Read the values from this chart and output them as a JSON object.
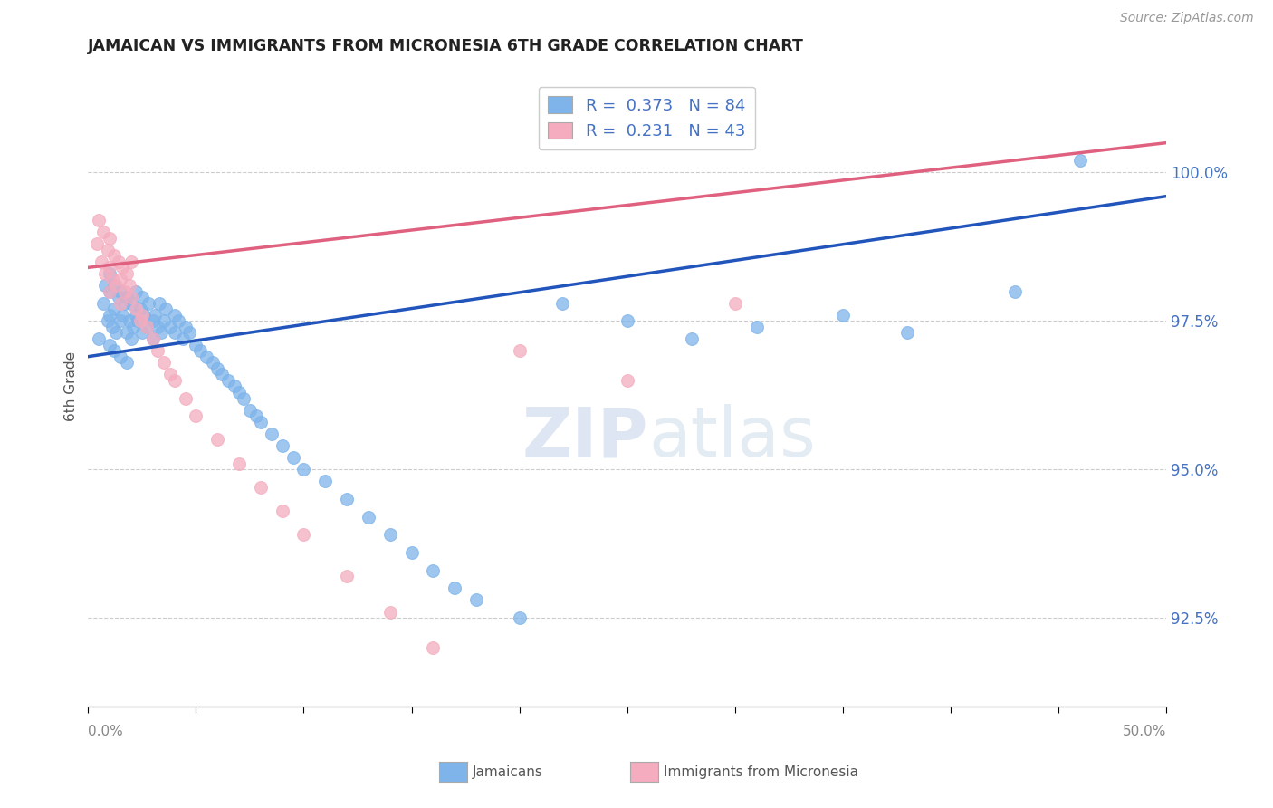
{
  "title": "JAMAICAN VS IMMIGRANTS FROM MICRONESIA 6TH GRADE CORRELATION CHART",
  "source": "Source: ZipAtlas.com",
  "ylabel": "6th Grade",
  "yticks": [
    92.5,
    95.0,
    97.5,
    100.0
  ],
  "ytick_labels": [
    "92.5%",
    "95.0%",
    "97.5%",
    "100.0%"
  ],
  "xlim": [
    0.0,
    0.5
  ],
  "ylim": [
    91.0,
    101.8
  ],
  "legend1_r": "0.373",
  "legend1_n": "84",
  "legend2_r": "0.231",
  "legend2_n": "43",
  "blue_color": "#7EB4EA",
  "pink_color": "#F4ACBE",
  "blue_line_color": "#2255BB",
  "pink_line_color": "#E06080",
  "watermark_zip": "ZIP",
  "watermark_atlas": "atlas",
  "blue_line_x0": 0.0,
  "blue_line_y0": 96.9,
  "blue_line_x1": 0.5,
  "blue_line_y1": 99.6,
  "pink_line_x0": 0.0,
  "pink_line_y0": 98.4,
  "pink_line_x1": 0.5,
  "pink_line_y1": 100.5,
  "blue_x": [
    0.005,
    0.007,
    0.008,
    0.009,
    0.01,
    0.01,
    0.01,
    0.011,
    0.012,
    0.012,
    0.013,
    0.014,
    0.015,
    0.015,
    0.016,
    0.017,
    0.018,
    0.018,
    0.019,
    0.02,
    0.02,
    0.021,
    0.022,
    0.022,
    0.023,
    0.024,
    0.025,
    0.025,
    0.026,
    0.027,
    0.028,
    0.03,
    0.03,
    0.031,
    0.032,
    0.033,
    0.034,
    0.035,
    0.036,
    0.038,
    0.04,
    0.04,
    0.042,
    0.044,
    0.045,
    0.047,
    0.05,
    0.052,
    0.055,
    0.058,
    0.06,
    0.062,
    0.065,
    0.068,
    0.07,
    0.072,
    0.075,
    0.078,
    0.08,
    0.085,
    0.09,
    0.095,
    0.1,
    0.11,
    0.12,
    0.13,
    0.14,
    0.15,
    0.16,
    0.17,
    0.18,
    0.2,
    0.22,
    0.25,
    0.28,
    0.31,
    0.35,
    0.38,
    0.43,
    0.46,
    0.01,
    0.012,
    0.015,
    0.018
  ],
  "blue_y": [
    97.2,
    97.8,
    98.1,
    97.5,
    97.6,
    98.0,
    98.3,
    97.4,
    97.7,
    98.1,
    97.3,
    97.9,
    97.5,
    98.0,
    97.6,
    97.8,
    97.3,
    97.9,
    97.5,
    97.2,
    97.8,
    97.4,
    97.6,
    98.0,
    97.5,
    97.7,
    97.3,
    97.9,
    97.6,
    97.4,
    97.8,
    97.5,
    97.2,
    97.6,
    97.4,
    97.8,
    97.3,
    97.5,
    97.7,
    97.4,
    97.3,
    97.6,
    97.5,
    97.2,
    97.4,
    97.3,
    97.1,
    97.0,
    96.9,
    96.8,
    96.7,
    96.6,
    96.5,
    96.4,
    96.3,
    96.2,
    96.0,
    95.9,
    95.8,
    95.6,
    95.4,
    95.2,
    95.0,
    94.8,
    94.5,
    94.2,
    93.9,
    93.6,
    93.3,
    93.0,
    92.8,
    92.5,
    97.8,
    97.5,
    97.2,
    97.4,
    97.6,
    97.3,
    98.0,
    100.2,
    97.1,
    97.0,
    96.9,
    96.8
  ],
  "pink_x": [
    0.004,
    0.005,
    0.006,
    0.007,
    0.008,
    0.009,
    0.01,
    0.01,
    0.011,
    0.012,
    0.013,
    0.014,
    0.015,
    0.016,
    0.017,
    0.018,
    0.019,
    0.02,
    0.022,
    0.024,
    0.025,
    0.027,
    0.03,
    0.032,
    0.035,
    0.038,
    0.04,
    0.045,
    0.05,
    0.06,
    0.07,
    0.08,
    0.09,
    0.1,
    0.12,
    0.14,
    0.16,
    0.2,
    0.25,
    0.3,
    0.01,
    0.015,
    0.02
  ],
  "pink_y": [
    98.8,
    99.2,
    98.5,
    99.0,
    98.3,
    98.7,
    98.4,
    98.9,
    98.2,
    98.6,
    98.1,
    98.5,
    98.2,
    98.4,
    98.0,
    98.3,
    98.1,
    97.9,
    97.7,
    97.5,
    97.6,
    97.4,
    97.2,
    97.0,
    96.8,
    96.6,
    96.5,
    96.2,
    95.9,
    95.5,
    95.1,
    94.7,
    94.3,
    93.9,
    93.2,
    92.6,
    92.0,
    97.0,
    96.5,
    97.8,
    98.0,
    97.8,
    98.5
  ]
}
